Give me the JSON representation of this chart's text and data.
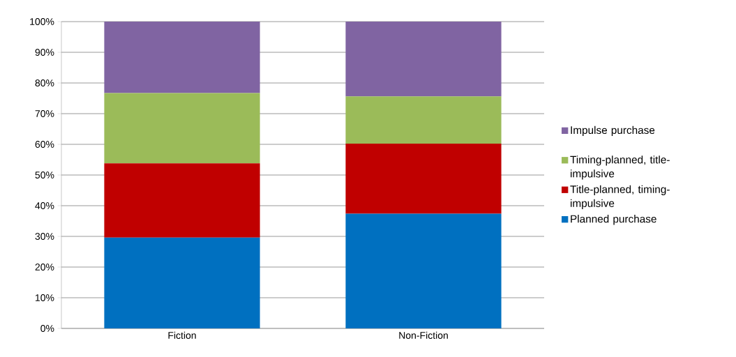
{
  "chart_data": {
    "type": "bar",
    "stacked": true,
    "categories": [
      "Fiction",
      "Non-Fiction"
    ],
    "series": [
      {
        "name": "Planned purchase",
        "color": "#0070c0",
        "values": [
          29.6,
          37.4
        ]
      },
      {
        "name": "Title-planned, timing-impulsive",
        "color": "#c00000",
        "values": [
          24.2,
          22.8
        ]
      },
      {
        "name": "Timing-planned, title-impulsive",
        "color": "#9bbb59",
        "values": [
          22.9,
          15.4
        ]
      },
      {
        "name": "Impulse purchase",
        "color": "#8064a2",
        "values": [
          23.3,
          24.4
        ]
      }
    ],
    "ylim": [
      0,
      100
    ],
    "yticks": [
      {
        "value": 0,
        "label": "0%"
      },
      {
        "value": 10,
        "label": "10%"
      },
      {
        "value": 20,
        "label": "20%"
      },
      {
        "value": 30,
        "label": "30%"
      },
      {
        "value": 40,
        "label": "40%"
      },
      {
        "value": 50,
        "label": "50%"
      },
      {
        "value": 60,
        "label": "60%"
      },
      {
        "value": 70,
        "label": "70%"
      },
      {
        "value": 80,
        "label": "80%"
      },
      {
        "value": 90,
        "label": "90%"
      },
      {
        "value": 100,
        "label": "100%"
      }
    ],
    "grid": "y",
    "legend": "right"
  }
}
